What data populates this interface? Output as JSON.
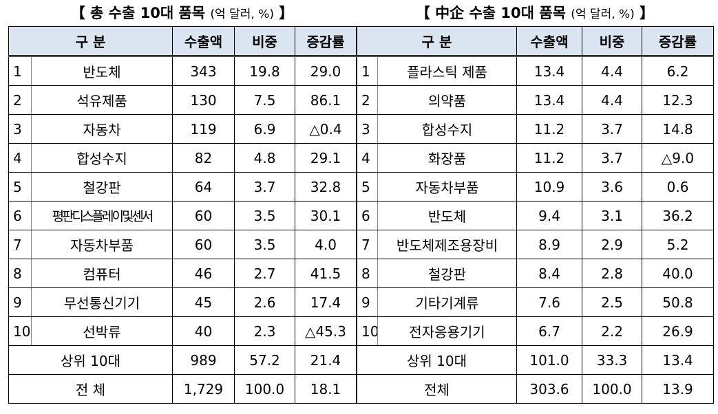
{
  "tables": [
    {
      "title": "【 총 수출 10대 품목",
      "unit": "(억 달러, %)",
      "close": "】",
      "headers": [
        "구 분",
        "수출액",
        "비중",
        "증감률"
      ],
      "rows": [
        [
          "1",
          "반도체",
          "343",
          "19.8",
          "29.0"
        ],
        [
          "2",
          "석유제품",
          "130",
          "7.5",
          "86.1"
        ],
        [
          "3",
          "자동차",
          "119",
          "6.9",
          "△0.4"
        ],
        [
          "4",
          "합성수지",
          "82",
          "4.8",
          "29.1"
        ],
        [
          "5",
          "철강판",
          "64",
          "3.7",
          "32.8"
        ],
        [
          "6",
          "평판디스플레이및센서",
          "60",
          "3.5",
          "30.1"
        ],
        [
          "7",
          "자동차부품",
          "60",
          "3.5",
          "4.0"
        ],
        [
          "8",
          "컴퓨터",
          "46",
          "2.7",
          "41.5"
        ],
        [
          "9",
          "무선통신기기",
          "45",
          "2.6",
          "17.4"
        ],
        [
          "10",
          "선박류",
          "40",
          "2.3",
          "△45.3"
        ]
      ],
      "footer": [
        [
          "상위 10대",
          "989",
          "57.2",
          "21.4"
        ],
        [
          "전 체",
          "1,729",
          "100.0",
          "18.1"
        ]
      ]
    },
    {
      "title": "【 中企 수출 10대 품목",
      "unit": "(억 달러, %)",
      "close": "】",
      "headers": [
        "구 분",
        "수출액",
        "비중",
        "증감률"
      ],
      "rows": [
        [
          "1",
          "플라스틱 제품",
          "13.4",
          "4.4",
          "6.2"
        ],
        [
          "2",
          "의약품",
          "13.4",
          "4.4",
          "12.3"
        ],
        [
          "3",
          "합성수지",
          "11.2",
          "3.7",
          "14.8"
        ],
        [
          "4",
          "화장품",
          "11.2",
          "3.7",
          "△9.0"
        ],
        [
          "5",
          "자동차부품",
          "10.9",
          "3.6",
          "0.6"
        ],
        [
          "6",
          "반도체",
          "9.4",
          "3.1",
          "36.2"
        ],
        [
          "7",
          "반도체제조용장비",
          "8.9",
          "2.9",
          "5.2"
        ],
        [
          "8",
          "철강판",
          "8.4",
          "2.8",
          "40.0"
        ],
        [
          "9",
          "기타기계류",
          "7.6",
          "2.5",
          "50.8"
        ],
        [
          "10",
          "전자응용기기",
          "6.7",
          "2.2",
          "26.9"
        ]
      ],
      "footer": [
        [
          "상위 10대",
          "101.0",
          "33.3",
          "13.4"
        ],
        [
          "전체",
          "303.6",
          "100.0",
          "13.9"
        ]
      ]
    }
  ]
}
